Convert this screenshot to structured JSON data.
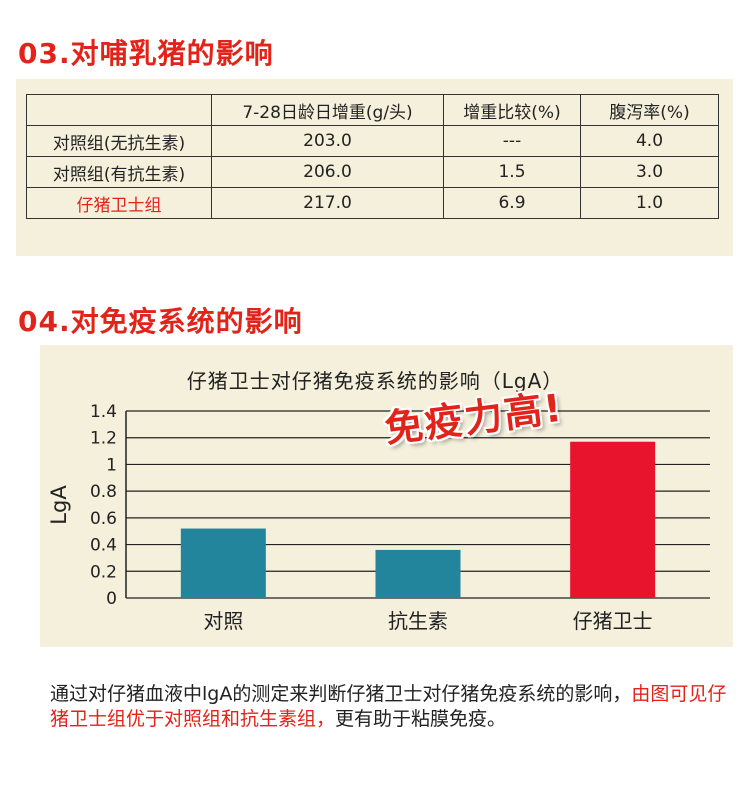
{
  "section3": {
    "title": "03.对哺乳猪的影响",
    "headers": [
      "",
      "7-28日龄日增重(g/头)",
      "增重比较(%)",
      "腹泻率(%)"
    ],
    "rows": [
      {
        "group": "对照组(无抗生素)",
        "gain": "203.0",
        "compare": "---",
        "diarrhea": "4.0",
        "highlight": false
      },
      {
        "group": "对照组(有抗生素)",
        "gain": "206.0",
        "compare": "1.5",
        "diarrhea": "3.0",
        "highlight": false
      },
      {
        "group": "仔猪卫士组",
        "gain": "217.0",
        "compare": "6.9",
        "diarrhea": "1.0",
        "highlight": true
      }
    ]
  },
  "section4": {
    "title": "04.对免疫系统的影响",
    "stamp": "免疫力高!",
    "paragraph": {
      "part1": "通过对仔猪血液中lgA的测定来判断仔猪卫士对仔猪免疫系统的影响，",
      "part2": "由图可见仔猪卫士组优于对照组和抗生素组，",
      "part3": "更有助于粘膜免疫。"
    }
  },
  "chart_data": {
    "type": "bar",
    "title": "仔猪卫士对仔猪免疫系统的影响（LgA）",
    "xlabel": "",
    "ylabel": "LgA",
    "categories": [
      "对照",
      "抗生素",
      "仔猪卫士"
    ],
    "values": [
      0.52,
      0.36,
      1.17
    ],
    "ylim": [
      0,
      1.4
    ],
    "yticks": [
      "0",
      "0.2",
      "0.4",
      "0.6",
      "0.8",
      "1",
      "1.2",
      "1.4"
    ],
    "bar_colors": [
      "#23859b",
      "#23859b",
      "#e8132c"
    ],
    "grid": true
  },
  "colors": {
    "accent": "#e2231a",
    "panel": "#f4f0dc"
  }
}
